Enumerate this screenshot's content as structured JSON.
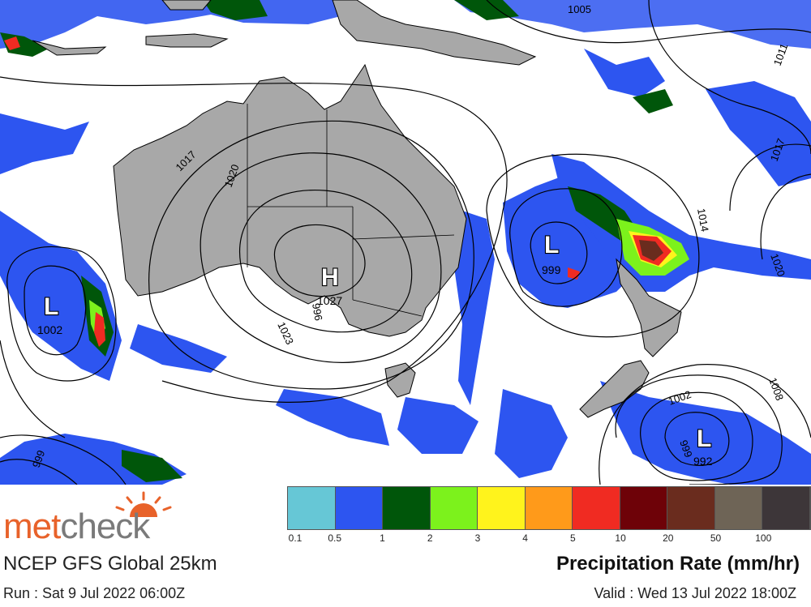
{
  "header": {
    "brand_part1": "met",
    "brand_part2": "check",
    "model": "NCEP GFS Global 25km",
    "run": "Run : Sat 9 Jul 2022 06:00Z",
    "valid": "Valid : Wed 13 Jul 2022 18:00Z",
    "legend_title": "Precipitation Rate (mm/hr)"
  },
  "legend": {
    "colors": [
      "#66c7d6",
      "#2d55f0",
      "#00560a",
      "#7cf21c",
      "#fff31c",
      "#ff9a1a",
      "#f02b22",
      "#6e0208",
      "#6a2c1e",
      "#6e6456",
      "#3d3639"
    ],
    "ticks": [
      "0.1",
      "0.5",
      "1",
      "2",
      "3",
      "4",
      "5",
      "10",
      "20",
      "50",
      "100"
    ]
  },
  "map": {
    "colors": {
      "land": "#a8a8a8",
      "ocean": "#ffffff",
      "rain_light": "#2d55f0",
      "rain_moderate": "#00560a",
      "rain_heavy": "#f02b22"
    },
    "isobar_labels": [
      "1005",
      "1011",
      "1017",
      "1020",
      "1017",
      "1023",
      "1014",
      "1020",
      "1002",
      "1008",
      "999",
      "996",
      "999"
    ],
    "pressure_centers": [
      {
        "letter": "H",
        "value": "1027"
      },
      {
        "letter": "L",
        "value": "1002"
      },
      {
        "letter": "L",
        "value": "999"
      },
      {
        "letter": "L",
        "value": "992"
      }
    ]
  }
}
